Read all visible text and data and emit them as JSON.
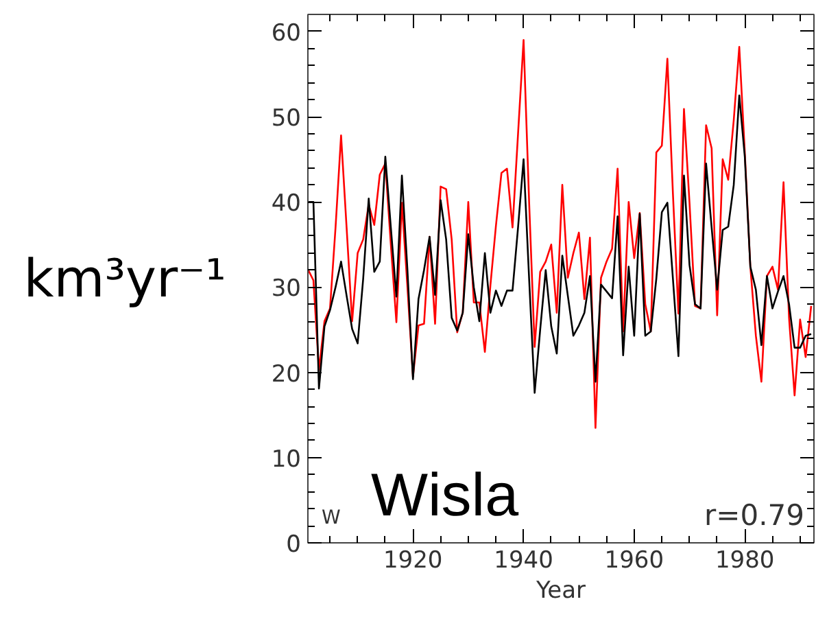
{
  "chart_data": {
    "type": "line",
    "xlabel": "Year",
    "ylabel": "km³yr⁻¹",
    "annotations": [
      "Wisla",
      "r=0.79",
      "W"
    ],
    "x": [
      1901,
      1902,
      1903,
      1904,
      1905,
      1906,
      1907,
      1908,
      1909,
      1910,
      1911,
      1912,
      1913,
      1914,
      1915,
      1916,
      1917,
      1918,
      1919,
      1920,
      1921,
      1922,
      1923,
      1924,
      1925,
      1926,
      1927,
      1928,
      1929,
      1930,
      1931,
      1932,
      1933,
      1934,
      1935,
      1936,
      1937,
      1938,
      1939,
      1940,
      1941,
      1942,
      1943,
      1944,
      1945,
      1946,
      1947,
      1948,
      1949,
      1950,
      1951,
      1952,
      1953,
      1954,
      1955,
      1956,
      1957,
      1958,
      1959,
      1960,
      1961,
      1962,
      1963,
      1964,
      1965,
      1966,
      1967,
      1968,
      1969,
      1970,
      1971,
      1972,
      1973,
      1974,
      1975,
      1976,
      1977,
      1978,
      1979,
      1980,
      1981,
      1982,
      1983,
      1984,
      1985,
      1986,
      1987,
      1988,
      1989,
      1990,
      1991,
      1992
    ],
    "series": [
      {
        "color": "#ff0000",
        "values": [
          32.1,
          30.8,
          20.3,
          26,
          27.5,
          37,
          47.8,
          37,
          26,
          34,
          35.6,
          39.7,
          37.3,
          43.2,
          44.5,
          35,
          25.9,
          39.9,
          30,
          19.5,
          25.5,
          25.7,
          35.9,
          25.7,
          41.8,
          41.5,
          35.6,
          24.7,
          27,
          40,
          28.2,
          28.2,
          22.4,
          30.2,
          37.2,
          43.4,
          43.9,
          37,
          48,
          59,
          40,
          23,
          31.8,
          33,
          35,
          27,
          42,
          31.1,
          34,
          36.4,
          28.6,
          35.8,
          13.5,
          31.1,
          33,
          34.5,
          43.9,
          24.8,
          40,
          33.4,
          38.7,
          28,
          24.8,
          45.8,
          46.6,
          56.8,
          41,
          26.9,
          50.9,
          39.9,
          27.8,
          27.5,
          49,
          46.3,
          26.7,
          45,
          42.6,
          49.6,
          58.2,
          45.8,
          32.4,
          24.3,
          18.9,
          31.3,
          32.4,
          29.7,
          42.3,
          26.4,
          17.3,
          26.2,
          21.8,
          27.8
        ]
      },
      {
        "color": "#000000",
        "values": [
          40,
          40,
          18.1,
          25.4,
          27.3,
          30,
          33,
          29,
          25.1,
          23.4,
          31,
          40.4,
          31.8,
          33,
          45.3,
          37,
          28.9,
          43.1,
          32,
          19.2,
          28.6,
          32,
          35.9,
          29.1,
          40.2,
          35.6,
          26.4,
          24.9,
          27,
          36.2,
          30,
          26,
          34,
          27,
          29.6,
          27.8,
          29.6,
          29.6,
          37,
          45,
          31,
          17.6,
          25,
          32,
          25.4,
          22.2,
          33.7,
          29,
          24.3,
          25.5,
          27,
          31.3,
          18.9,
          30.3,
          29.5,
          28.7,
          38.3,
          22,
          32.4,
          24.3,
          38.6,
          24.3,
          24.8,
          31,
          38.8,
          39.9,
          31,
          21.9,
          43.1,
          32.6,
          28,
          27.5,
          44.5,
          37,
          29.7,
          36.7,
          37.1,
          42,
          52.5,
          45.3,
          32.4,
          29.7,
          23.2,
          31.3,
          27.5,
          29.5,
          31.3,
          28,
          22.9,
          22.9,
          24.3,
          24.5
        ]
      }
    ],
    "xlim": [
      1901,
      1992.5
    ],
    "ylim": [
      0,
      62
    ],
    "xticks": [
      {
        "value": 1905,
        "label": null
      },
      {
        "value": 1910,
        "label": null
      },
      {
        "value": 1915,
        "label": null
      },
      1920,
      {
        "value": 1925,
        "label": null
      },
      {
        "value": 1930,
        "label": null
      },
      {
        "value": 1935,
        "label": null
      },
      1940,
      {
        "value": 1945,
        "label": null
      },
      {
        "value": 1950,
        "label": null
      },
      {
        "value": 1955,
        "label": null
      },
      1960,
      {
        "value": 1965,
        "label": null
      },
      {
        "value": 1970,
        "label": null
      },
      {
        "value": 1975,
        "label": null
      },
      1980,
      {
        "value": 1985,
        "label": null
      },
      {
        "value": 1990,
        "label": null
      }
    ],
    "yticks": [
      0,
      {
        "value": 2,
        "label": null
      },
      {
        "value": 4,
        "label": null
      },
      {
        "value": 6,
        "label": null
      },
      {
        "value": 8,
        "label": null
      },
      10,
      {
        "value": 12,
        "label": null
      },
      {
        "value": 14,
        "label": null
      },
      {
        "value": 16,
        "label": null
      },
      {
        "value": 18,
        "label": null
      },
      20,
      {
        "value": 22,
        "label": null
      },
      {
        "value": 24,
        "label": null
      },
      {
        "value": 26,
        "label": null
      },
      {
        "value": 28,
        "label": null
      },
      30,
      {
        "value": 32,
        "label": null
      },
      {
        "value": 34,
        "label": null
      },
      {
        "value": 36,
        "label": null
      },
      {
        "value": 38,
        "label": null
      },
      40,
      {
        "value": 42,
        "label": null
      },
      {
        "value": 44,
        "label": null
      },
      {
        "value": 46,
        "label": null
      },
      {
        "value": 48,
        "label": null
      },
      50,
      {
        "value": 52,
        "label": null
      },
      {
        "value": 54,
        "label": null
      },
      {
        "value": 56,
        "label": null
      },
      {
        "value": 58,
        "label": null
      },
      60
    ],
    "grid": false
  }
}
